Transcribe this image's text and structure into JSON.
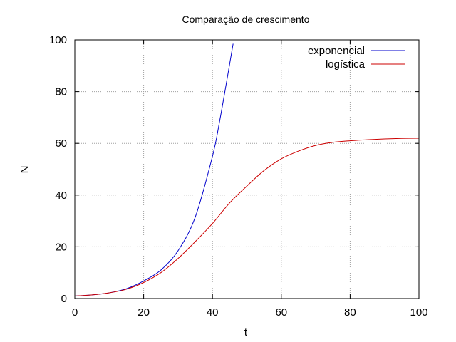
{
  "chart_data": {
    "type": "line",
    "title": "Comparação de crescimento",
    "xlabel": "t",
    "ylabel": "N",
    "xlim": [
      0,
      100
    ],
    "ylim": [
      0,
      100
    ],
    "xticks": [
      0,
      20,
      40,
      60,
      80,
      100
    ],
    "yticks": [
      0,
      20,
      40,
      60,
      80,
      100
    ],
    "grid": true,
    "legend_position": "top-right",
    "series": [
      {
        "name": "exponencial",
        "color": "#0000cc",
        "x": [
          0,
          5,
          10,
          15,
          20,
          25,
          30,
          35,
          40,
          42,
          44,
          46
        ],
        "y": [
          1.0,
          1.4,
          2.2,
          3.8,
          6.8,
          11.0,
          18.5,
          31.5,
          55.0,
          68.0,
          83.0,
          98.5
        ]
      },
      {
        "name": "logística",
        "color": "#cc0000",
        "x": [
          0,
          5,
          10,
          15,
          20,
          25,
          30,
          35,
          40,
          45,
          50,
          55,
          60,
          65,
          70,
          75,
          80,
          85,
          90,
          95,
          100
        ],
        "y": [
          1.0,
          1.4,
          2.2,
          3.6,
          6.2,
          10.0,
          15.5,
          22.0,
          29.0,
          37.0,
          43.5,
          49.5,
          54.0,
          57.0,
          59.2,
          60.4,
          61.0,
          61.4,
          61.7,
          61.9,
          62.0
        ]
      }
    ]
  }
}
